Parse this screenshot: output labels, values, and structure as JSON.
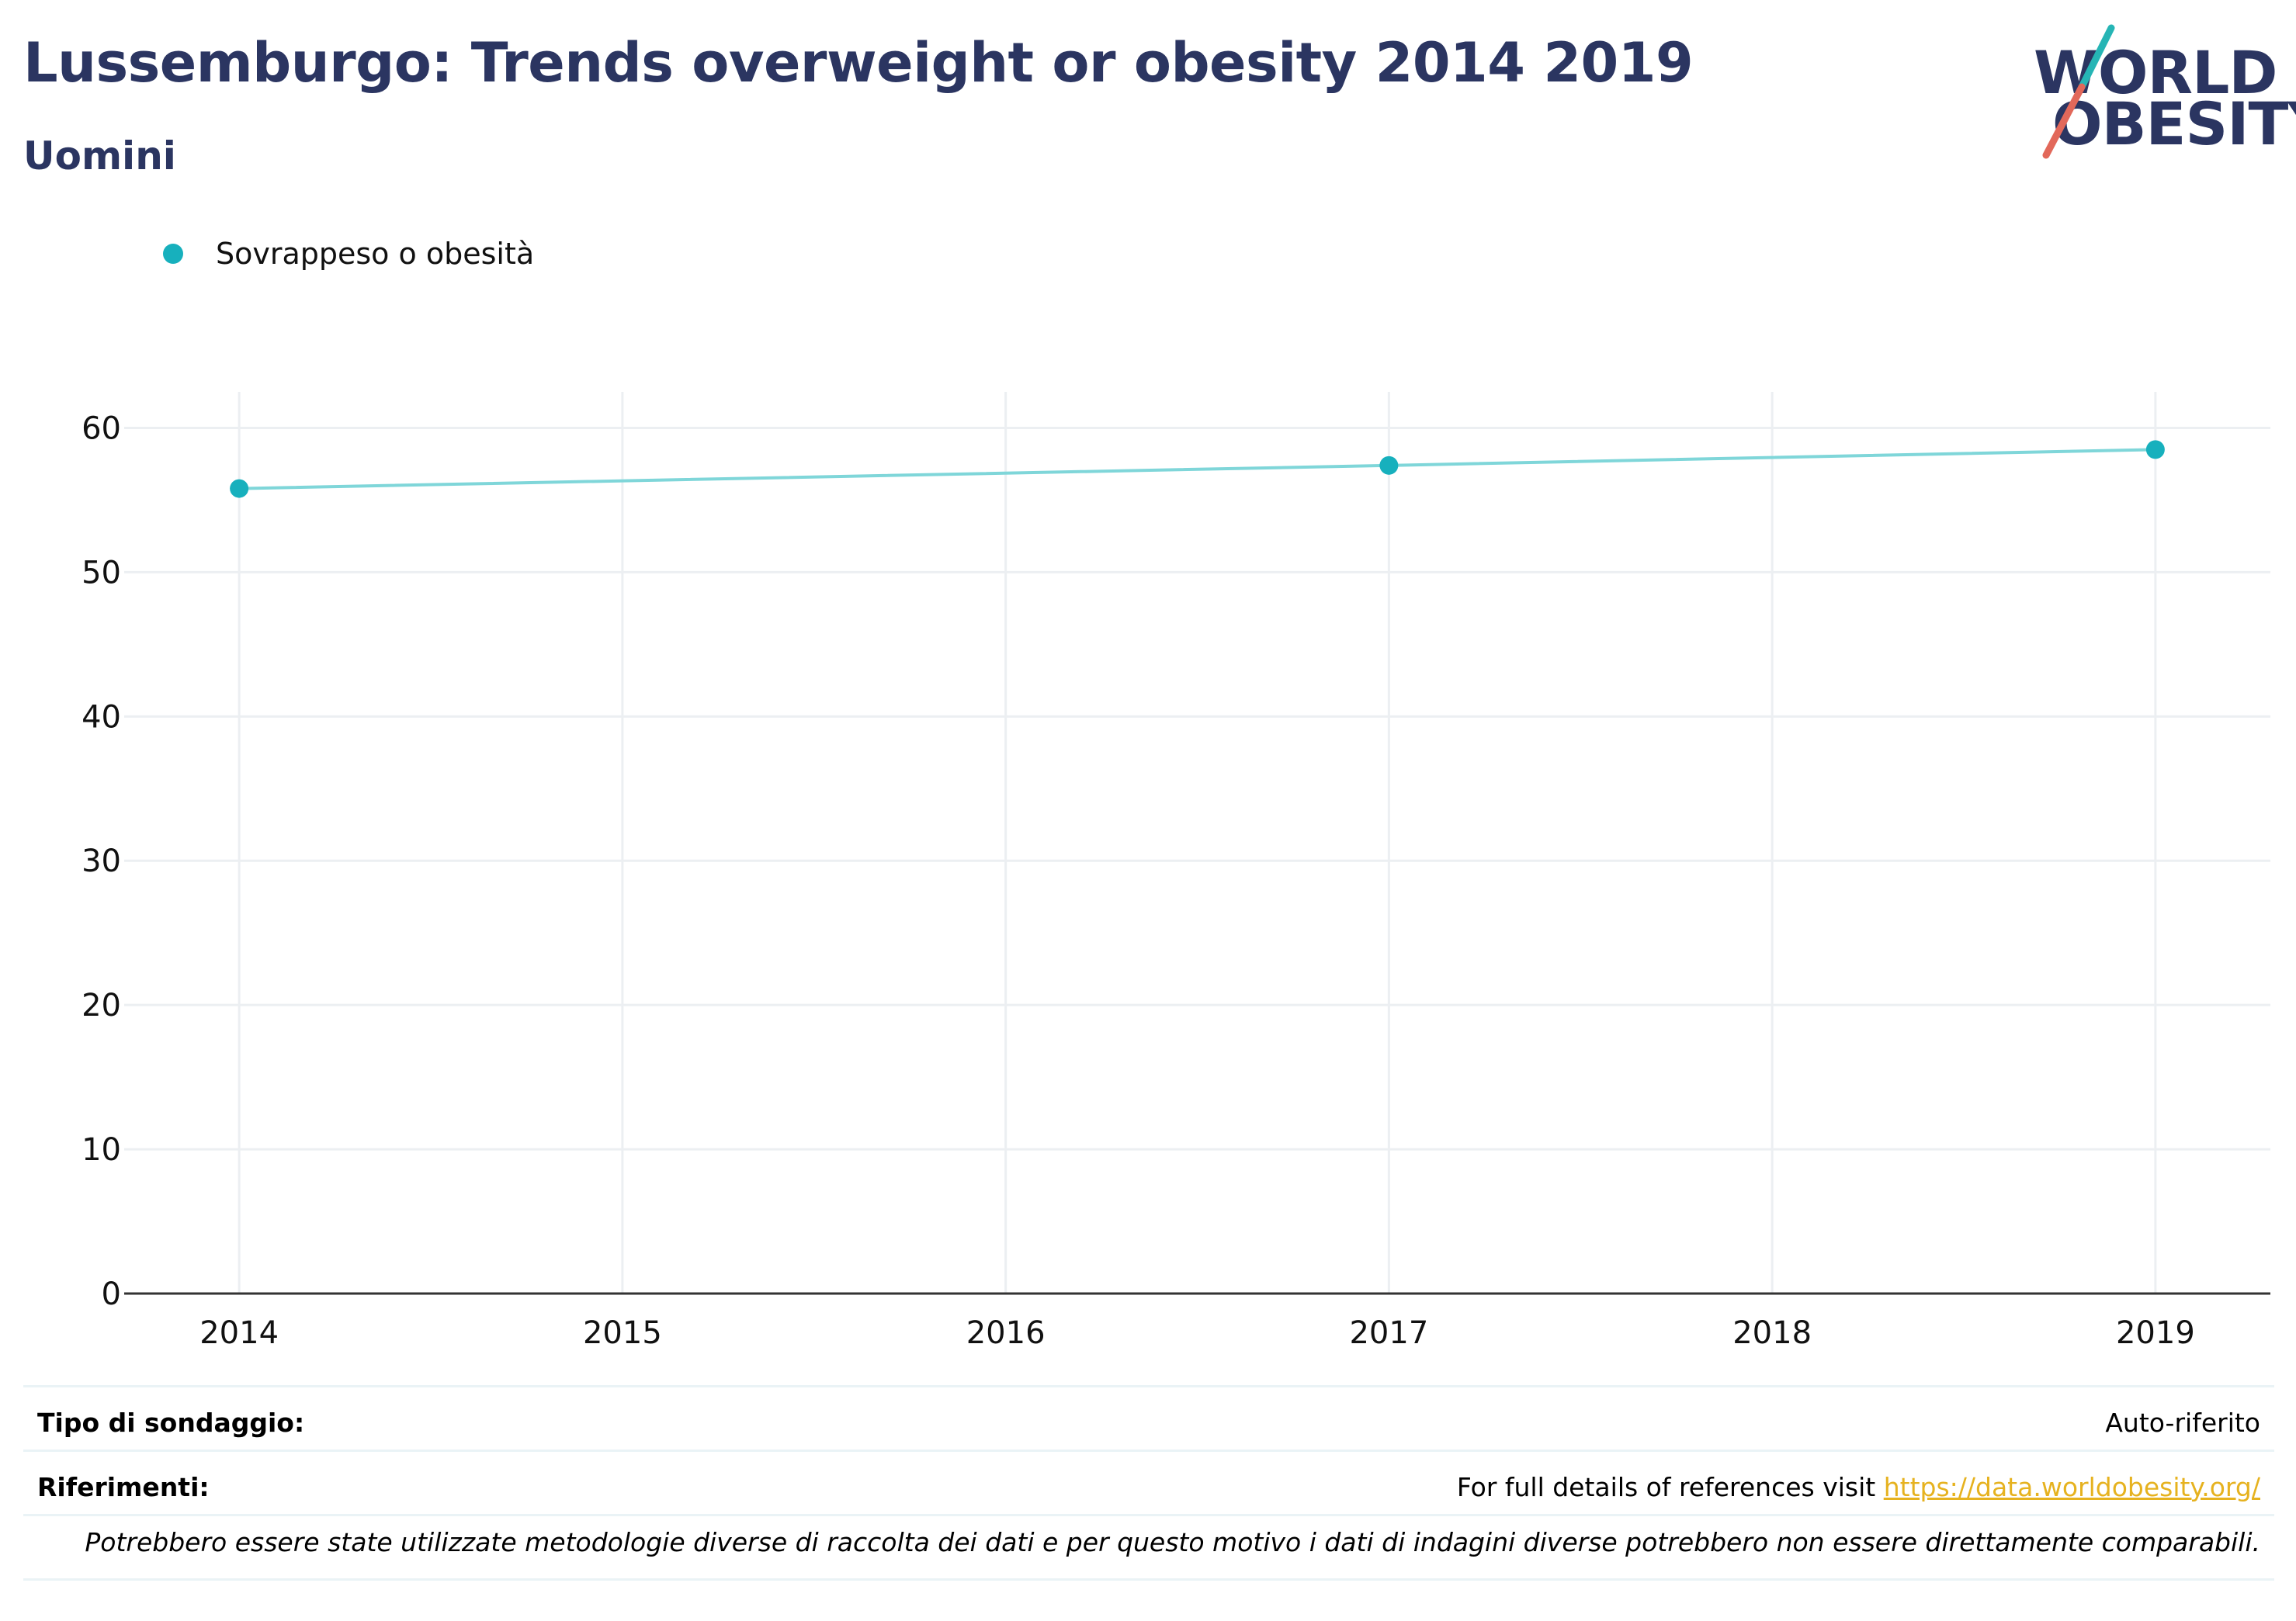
{
  "header": {
    "title": "Lussemburgo: Trends overweight or obesity 2014 2019",
    "subtitle": "Uomini"
  },
  "logo": {
    "line1": "WORLD",
    "line2": "OBESITY",
    "colors": {
      "text": "#2b3561",
      "slash_top": "#26b5b5",
      "slash_bottom": "#e2685a"
    }
  },
  "legend": {
    "items": [
      {
        "label": "Sovrappeso o obesità",
        "color": "#17b0bd"
      }
    ]
  },
  "chart_data": {
    "type": "line",
    "x_ticks": [
      "2014",
      "2015",
      "2016",
      "2017",
      "2018",
      "2019"
    ],
    "y_ticks": [
      "0",
      "10",
      "20",
      "30",
      "40",
      "50",
      "60"
    ],
    "xlim": [
      2013.7,
      2019.3
    ],
    "ylim": [
      0,
      62.5
    ],
    "grid": true,
    "legend_position": "top-left",
    "series": [
      {
        "name": "Sovrappeso o obesità",
        "color": "#17b0bd",
        "line_color": "#7fd6d9",
        "x": [
          2014,
          2017,
          2019
        ],
        "y": [
          55.8,
          57.4,
          58.5
        ]
      }
    ]
  },
  "footer": {
    "survey_label": "Tipo di sondaggio:",
    "survey_value": "Auto-riferito",
    "references_label": "Riferimenti:",
    "references_text": "For full details of references visit ",
    "references_link": "https://data.worldobesity.org/",
    "note": "Potrebbero essere state utilizzate metodologie diverse di raccolta dei dati e per questo motivo i dati di indagini diverse potrebbero non essere direttamente comparabili."
  }
}
